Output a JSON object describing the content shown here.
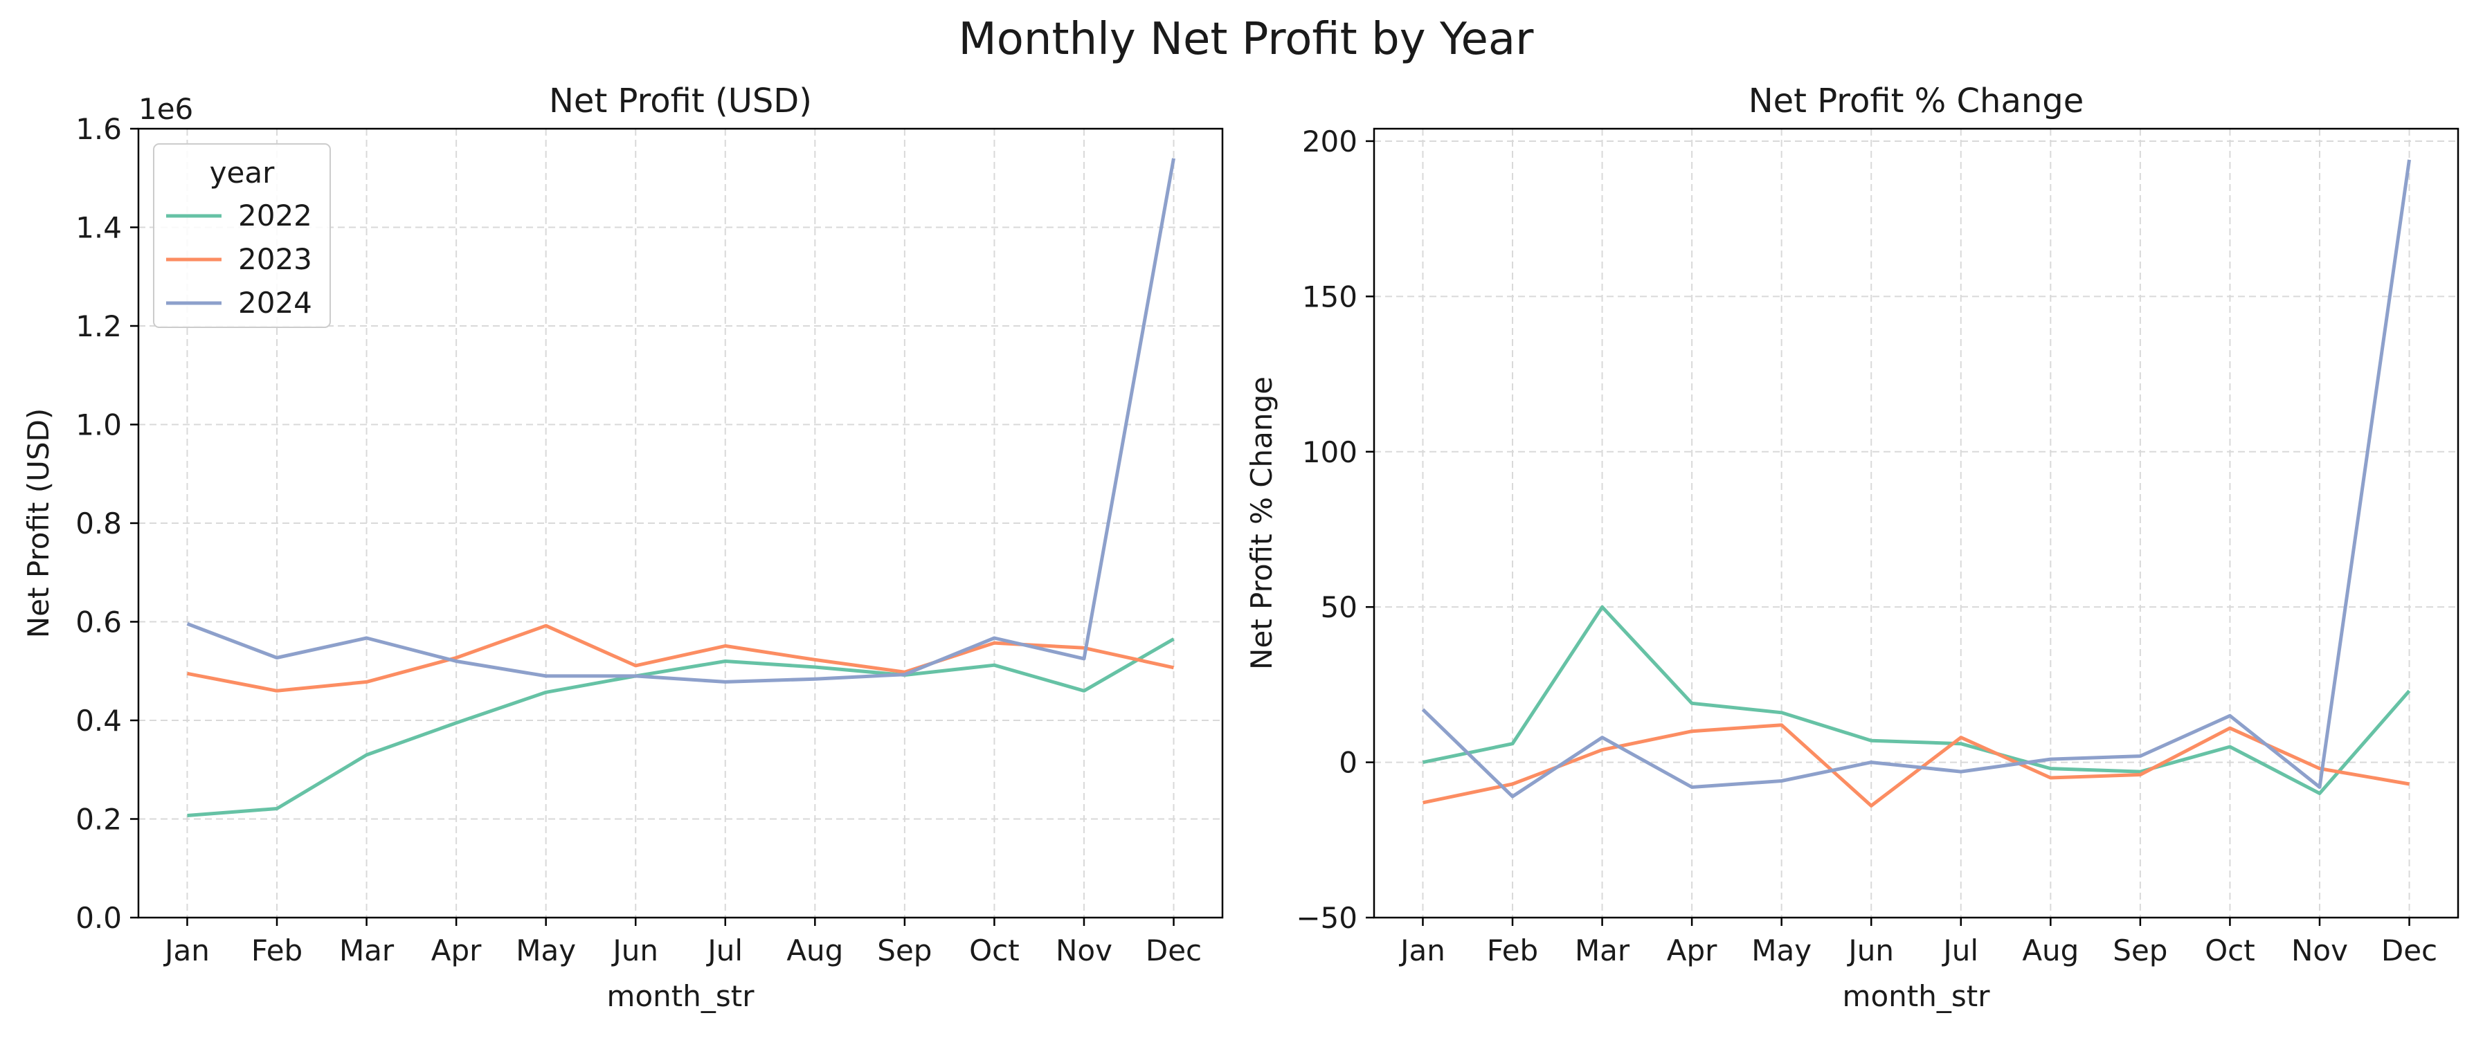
{
  "figure_title": "Monthly Net Profit by Year",
  "colors": {
    "2022": "#66c2a5",
    "2023": "#fc8d62",
    "2024": "#8da0cb"
  },
  "chart_data": [
    {
      "type": "line",
      "title": "Net Profit (USD)",
      "xlabel": "month_str",
      "ylabel": "Net Profit (USD)",
      "y_offset_label": "1e6",
      "x": [
        "Jan",
        "Feb",
        "Mar",
        "Apr",
        "May",
        "Jun",
        "Jul",
        "Aug",
        "Sep",
        "Oct",
        "Nov",
        "Dec"
      ],
      "ylim": [
        0,
        1.6
      ],
      "yticks": [
        0.0,
        0.2,
        0.4,
        0.6,
        0.8,
        1.0,
        1.2,
        1.4,
        1.6
      ],
      "ytick_labels": [
        "0.0",
        "0.2",
        "0.4",
        "0.6",
        "0.8",
        "1.0",
        "1.2",
        "1.4",
        "1.6"
      ],
      "grid": true,
      "legend": {
        "title": "year",
        "placement": "upper-left"
      },
      "series": [
        {
          "name": "2022",
          "values": [
            0.207,
            0.221,
            0.33,
            0.395,
            0.457,
            0.49,
            0.52,
            0.508,
            0.492,
            0.512,
            0.46,
            0.565
          ]
        },
        {
          "name": "2023",
          "values": [
            0.495,
            0.46,
            0.478,
            0.527,
            0.592,
            0.511,
            0.551,
            0.523,
            0.498,
            0.557,
            0.547,
            0.507
          ]
        },
        {
          "name": "2024",
          "values": [
            0.596,
            0.527,
            0.567,
            0.52,
            0.49,
            0.49,
            0.478,
            0.484,
            0.493,
            0.567,
            0.525,
            1.54
          ]
        }
      ]
    },
    {
      "type": "line",
      "title": "Net Profit % Change",
      "xlabel": "month_str",
      "ylabel": "Net Profit % Change",
      "x": [
        "Jan",
        "Feb",
        "Mar",
        "Apr",
        "May",
        "Jun",
        "Jul",
        "Aug",
        "Sep",
        "Oct",
        "Nov",
        "Dec"
      ],
      "ylim": [
        -50,
        204
      ],
      "yticks": [
        -50,
        0,
        50,
        100,
        150,
        200
      ],
      "ytick_labels": [
        "−50",
        "0",
        "50",
        "100",
        "150",
        "200"
      ],
      "grid": true,
      "series": [
        {
          "name": "2022",
          "values": [
            0,
            6,
            50,
            19,
            16,
            7,
            6,
            -2,
            -3,
            5,
            -10,
            23
          ]
        },
        {
          "name": "2023",
          "values": [
            -13,
            -7,
            4,
            10,
            12,
            -14,
            8,
            -5,
            -4,
            11,
            -2,
            -7
          ]
        },
        {
          "name": "2024",
          "values": [
            17,
            -11,
            8,
            -8,
            -6,
            0,
            -3,
            1,
            2,
            15,
            -8,
            194
          ]
        }
      ]
    }
  ]
}
